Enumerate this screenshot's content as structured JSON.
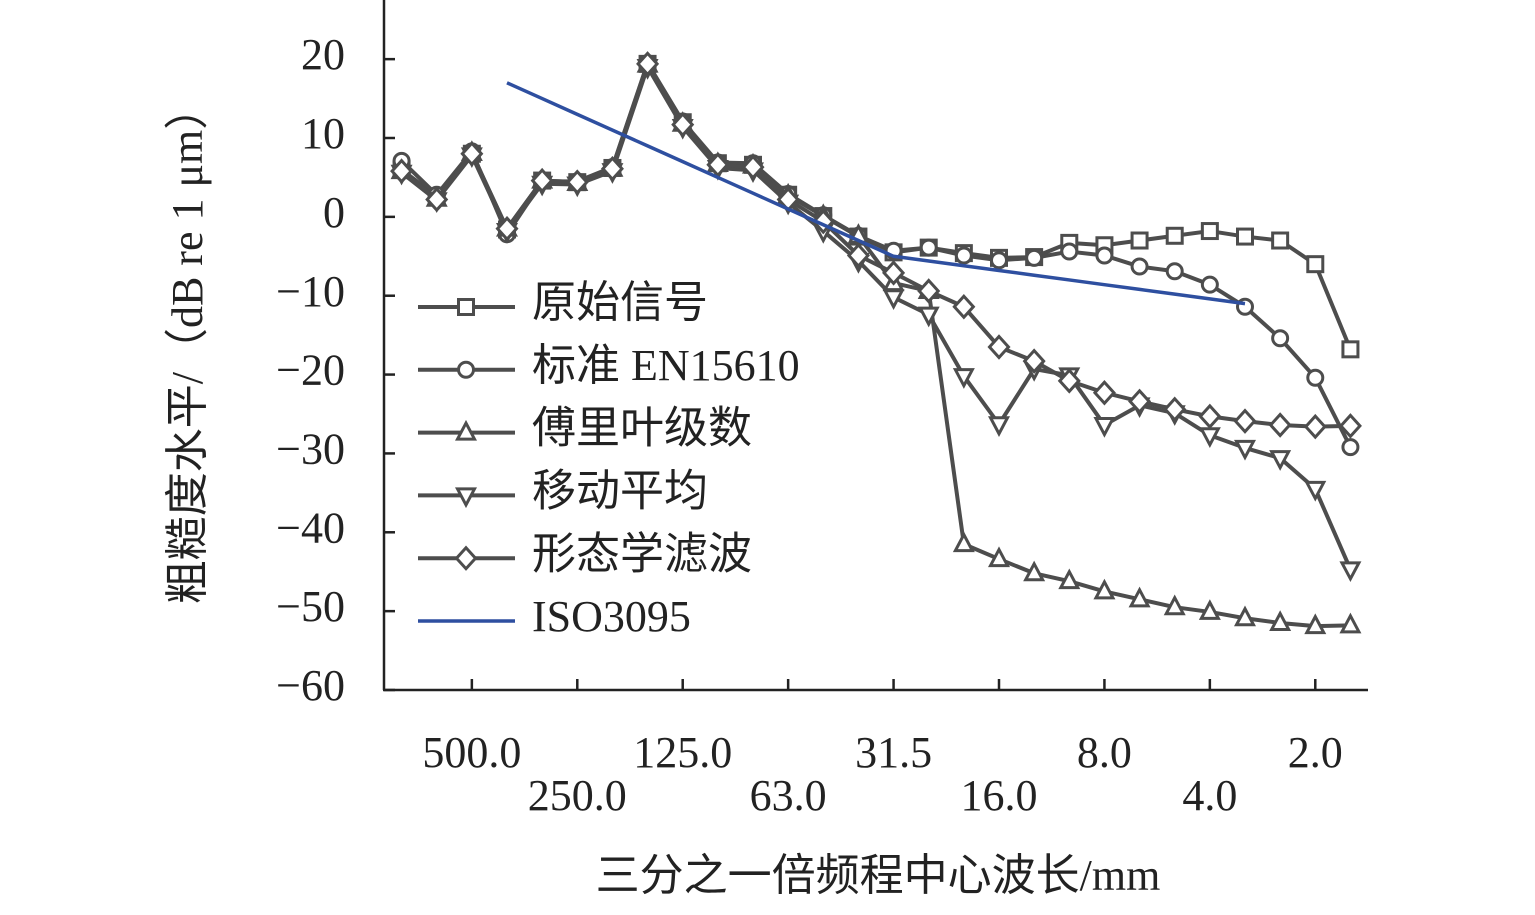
{
  "chart_data": {
    "type": "line",
    "y_label": "粗糙度水平/（dB re 1 μm）",
    "x_label": "三分之一倍频程中心波长/mm",
    "categories": [
      null,
      null,
      "500.0",
      null,
      null,
      "250.0",
      null,
      null,
      "125.0",
      null,
      null,
      "63.0",
      null,
      null,
      "31.5",
      null,
      null,
      "16.0",
      null,
      null,
      "8.0",
      null,
      null,
      "4.0",
      null,
      null,
      "2.0",
      null
    ],
    "ylim": [
      -60,
      27.5
    ],
    "yticks": [
      {
        "value": -60,
        "label": "−60"
      },
      {
        "value": -50,
        "label": "−50"
      },
      {
        "value": -40,
        "label": "−40"
      },
      {
        "value": -30,
        "label": "−30"
      },
      {
        "value": -20,
        "label": "−20"
      },
      {
        "value": -10,
        "label": "−10"
      },
      0,
      10,
      20
    ],
    "series": [
      {
        "name": "原始信号",
        "color": "#4d4d4d",
        "marker": "square",
        "values": [
          6.0,
          2.6,
          8.0,
          -1.6,
          4.6,
          4.4,
          6.2,
          19.4,
          12.0,
          6.8,
          6.6,
          2.8,
          0.1,
          -2.5,
          -4.5,
          -3.9,
          -4.6,
          -5.2,
          -5.1,
          -3.3,
          -3.6,
          -3.0,
          -2.4,
          -1.8,
          -2.5,
          -3.0,
          -6.0,
          -16.8
        ]
      },
      {
        "name": "标准 EN15610",
        "color": "#4d4d4d",
        "marker": "circle",
        "values": [
          7.1,
          2.8,
          8.3,
          -2.2,
          4.5,
          4.5,
          6.3,
          19.5,
          12.1,
          6.9,
          6.8,
          2.9,
          0.2,
          -2.4,
          -4.3,
          -3.9,
          -4.9,
          -5.5,
          -5.2,
          -4.4,
          -4.9,
          -6.3,
          -6.9,
          -8.6,
          -11.4,
          -15.4,
          -20.4,
          -29.2
        ]
      },
      {
        "name": "傅里叶级数",
        "color": "#4d4d4d",
        "marker": "triangle-up",
        "values": [
          5.8,
          2.3,
          8.1,
          -1.5,
          4.6,
          4.3,
          6.1,
          19.3,
          11.8,
          6.7,
          6.5,
          2.7,
          0.1,
          -2.4,
          -8.4,
          -9.4,
          -41.5,
          -43.4,
          -45.2,
          -46.2,
          -47.5,
          -48.5,
          -49.5,
          -50.1,
          -50.9,
          -51.5,
          -51.9,
          -51.8
        ]
      },
      {
        "name": "移动平均",
        "color": "#4d4d4d",
        "marker": "triangle-down",
        "values": [
          5.6,
          2.1,
          7.8,
          -1.8,
          4.2,
          4.1,
          5.8,
          19.0,
          11.4,
          6.2,
          5.9,
          1.8,
          -1.8,
          -5.6,
          -10.2,
          -12.4,
          -20.2,
          -26.3,
          -19.3,
          -20.1,
          -26.4,
          -23.9,
          -24.9,
          -27.7,
          -29.3,
          -30.6,
          -34.5,
          -44.7
        ]
      },
      {
        "name": "形态学滤波",
        "color": "#4d4d4d",
        "marker": "diamond",
        "values": [
          5.8,
          2.2,
          8.0,
          -1.5,
          4.6,
          4.4,
          6.1,
          19.4,
          11.7,
          6.6,
          6.3,
          2.2,
          -0.6,
          -4.9,
          -7.1,
          -9.4,
          -11.4,
          -16.5,
          -18.3,
          -20.8,
          -22.3,
          -23.4,
          -24.4,
          -25.3,
          -25.9,
          -26.4,
          -26.6,
          -26.5
        ]
      },
      {
        "name": "ISO3095",
        "color": "#2e4fa0",
        "values": [
          null,
          null,
          null,
          17,
          15,
          13,
          11,
          9,
          7,
          5,
          3,
          1,
          -1,
          -3,
          -5,
          -5.6,
          -6.2,
          -6.8,
          -7.4,
          -8,
          -8.6,
          -9.2,
          -9.8,
          -10.4,
          -11,
          null,
          null,
          null
        ]
      }
    ]
  }
}
